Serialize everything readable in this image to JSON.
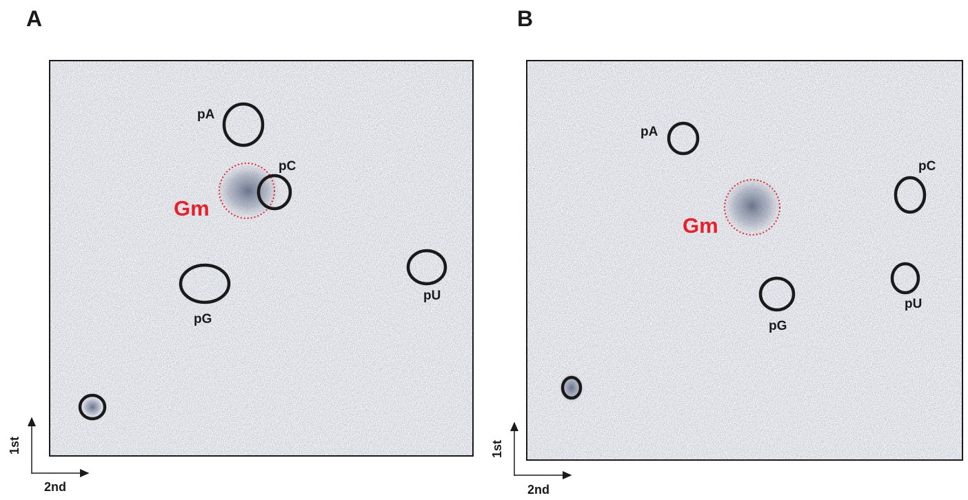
{
  "panels": [
    {
      "label": "A",
      "spots": [
        "pA",
        "pC",
        "Gm",
        "pG",
        "pU"
      ],
      "axes": [
        "1st",
        "2nd"
      ]
    },
    {
      "label": "B",
      "spots": [
        "pA",
        "pC",
        "Gm",
        "pG",
        "pU"
      ],
      "axes": [
        "1st",
        "2nd"
      ]
    }
  ]
}
